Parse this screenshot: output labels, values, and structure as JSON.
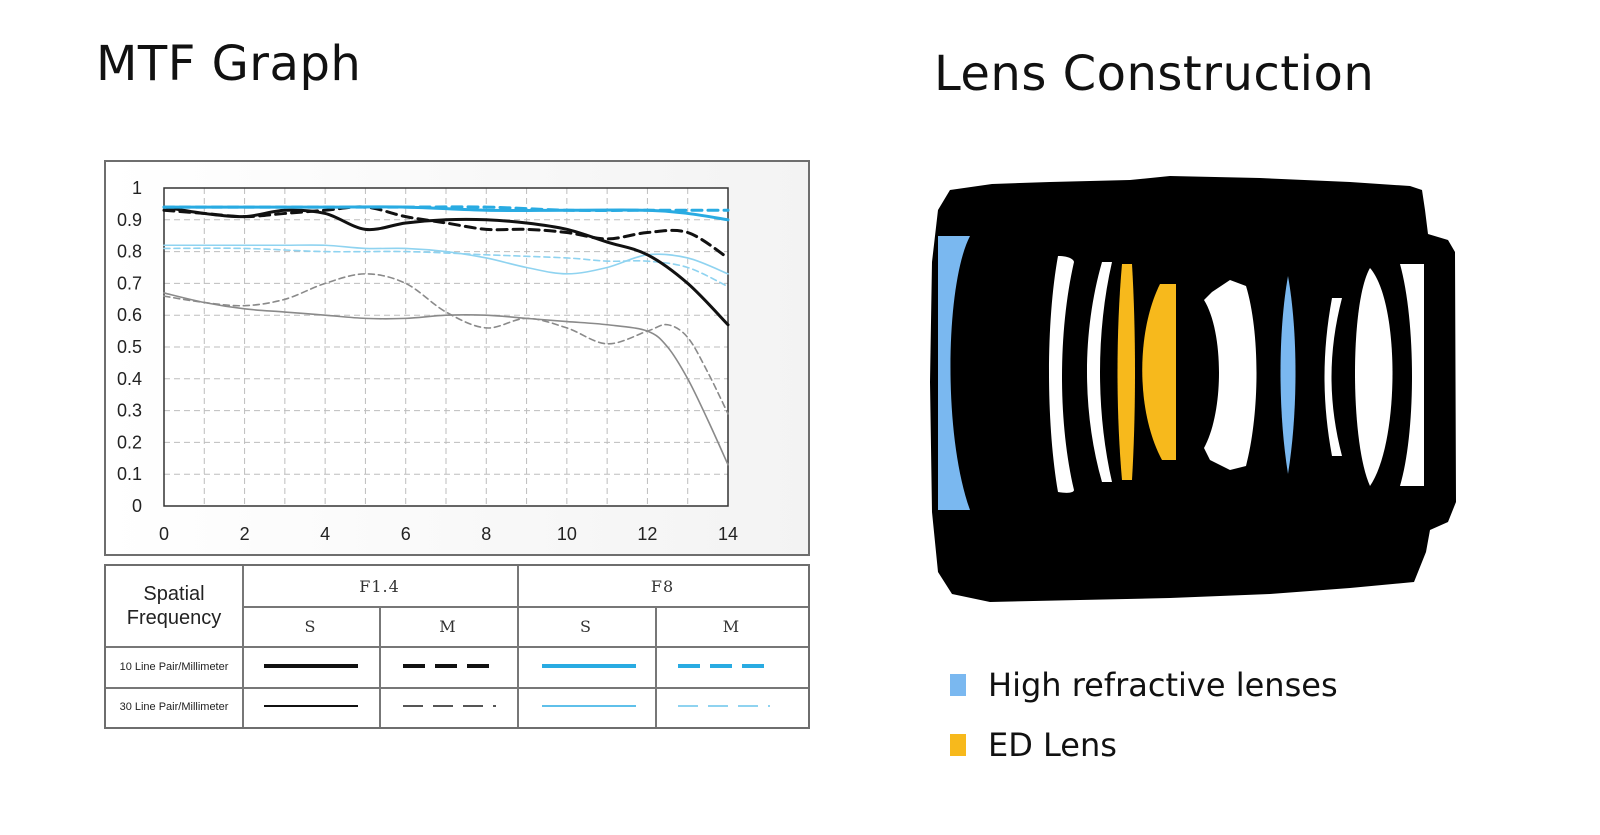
{
  "left_title": "MTF Graph",
  "right_title": "Lens Construction",
  "chart_data": {
    "type": "line",
    "title": "",
    "xlabel": "",
    "ylabel": "",
    "xlim": [
      0,
      14
    ],
    "ylim": [
      0,
      1
    ],
    "x_ticks": [
      0,
      2,
      4,
      6,
      8,
      10,
      12,
      14
    ],
    "y_ticks": [
      0,
      0.1,
      0.2,
      0.3,
      0.4,
      0.5,
      0.6,
      0.7,
      0.8,
      0.9,
      1
    ],
    "y_tick_labels": [
      "0",
      "0.1",
      "0.2",
      "0.3",
      "0.4",
      "0.5",
      "0.6",
      "0.7",
      "0.8",
      "0.9",
      "1"
    ],
    "grid": true,
    "series": [
      {
        "key": "f14-s-10",
        "color": "#111111",
        "dashed": false,
        "weight": "thick",
        "x": [
          0,
          1,
          2,
          3,
          4,
          5,
          6,
          7,
          8,
          9,
          10,
          11,
          12,
          13,
          14
        ],
        "y": [
          0.94,
          0.92,
          0.91,
          0.93,
          0.92,
          0.87,
          0.89,
          0.9,
          0.9,
          0.89,
          0.87,
          0.83,
          0.79,
          0.7,
          0.57
        ]
      },
      {
        "key": "f14-m-10",
        "color": "#111111",
        "dashed": true,
        "weight": "thick",
        "x": [
          0,
          1,
          2,
          3,
          4,
          5,
          6,
          7,
          8,
          9,
          10,
          11,
          12,
          13,
          14
        ],
        "y": [
          0.93,
          0.92,
          0.91,
          0.92,
          0.93,
          0.94,
          0.91,
          0.89,
          0.87,
          0.87,
          0.86,
          0.84,
          0.86,
          0.86,
          0.78
        ]
      },
      {
        "key": "f8-s-10",
        "color": "#29abe2",
        "dashed": false,
        "weight": "thick",
        "x": [
          0,
          2,
          4,
          6,
          8,
          10,
          12,
          13,
          14
        ],
        "y": [
          0.94,
          0.94,
          0.94,
          0.94,
          0.93,
          0.93,
          0.93,
          0.92,
          0.9
        ]
      },
      {
        "key": "f8-m-10",
        "color": "#29abe2",
        "dashed": true,
        "weight": "thick",
        "x": [
          0,
          2,
          4,
          6,
          8,
          10,
          12,
          13,
          14
        ],
        "y": [
          0.94,
          0.94,
          0.94,
          0.94,
          0.94,
          0.93,
          0.93,
          0.93,
          0.93
        ]
      },
      {
        "key": "f14-s-30",
        "color": "#8a8a8a",
        "dashed": false,
        "weight": "thin",
        "x": [
          0,
          1,
          2,
          3,
          4,
          5,
          6,
          7,
          8,
          9,
          10,
          11,
          12,
          12.5,
          13,
          13.5,
          14
        ],
        "y": [
          0.67,
          0.64,
          0.62,
          0.61,
          0.6,
          0.59,
          0.59,
          0.6,
          0.6,
          0.59,
          0.58,
          0.57,
          0.55,
          0.5,
          0.4,
          0.27,
          0.13
        ]
      },
      {
        "key": "f14-m-30",
        "color": "#8a8a8a",
        "dashed": true,
        "weight": "thin",
        "x": [
          0,
          1,
          2,
          3,
          4,
          5,
          6,
          7,
          8,
          9,
          10,
          11,
          12,
          12.5,
          13,
          13.5,
          14
        ],
        "y": [
          0.66,
          0.64,
          0.63,
          0.65,
          0.7,
          0.73,
          0.7,
          0.61,
          0.56,
          0.59,
          0.56,
          0.51,
          0.55,
          0.57,
          0.53,
          0.42,
          0.29
        ]
      },
      {
        "key": "f8-s-30",
        "color": "#8fd3f0",
        "dashed": false,
        "weight": "thin",
        "x": [
          0,
          1,
          2,
          3,
          4,
          5,
          6,
          7,
          8,
          9,
          10,
          11,
          12,
          13,
          14
        ],
        "y": [
          0.82,
          0.82,
          0.82,
          0.82,
          0.82,
          0.81,
          0.81,
          0.8,
          0.78,
          0.75,
          0.73,
          0.75,
          0.79,
          0.78,
          0.73
        ]
      },
      {
        "key": "f8-m-30",
        "color": "#8fd3f0",
        "dashed": true,
        "weight": "thin",
        "x": [
          0,
          2,
          4,
          6,
          8,
          10,
          11,
          12,
          13,
          14
        ],
        "y": [
          0.81,
          0.81,
          0.8,
          0.8,
          0.79,
          0.78,
          0.77,
          0.77,
          0.75,
          0.69
        ]
      }
    ]
  },
  "legend_table": {
    "header_label_line1": "Spatial",
    "header_label_line2": "Frequency",
    "groups": [
      {
        "label": "F1.4",
        "columns": [
          "S",
          "M"
        ]
      },
      {
        "label": "F8",
        "columns": [
          "S",
          "M"
        ]
      }
    ],
    "rows": [
      {
        "label": "10 Line Pair/Millimeter",
        "samples": [
          {
            "color": "#111111",
            "dashed": false,
            "weight": "thick"
          },
          {
            "color": "#111111",
            "dashed": true,
            "weight": "thick"
          },
          {
            "color": "#29abe2",
            "dashed": false,
            "weight": "thick"
          },
          {
            "color": "#29abe2",
            "dashed": true,
            "weight": "thick"
          }
        ]
      },
      {
        "label": "30 Line Pair/Millimeter",
        "samples": [
          {
            "color": "#111111",
            "dashed": false,
            "weight": "thin"
          },
          {
            "color": "#555555",
            "dashed": true,
            "weight": "thin"
          },
          {
            "color": "#5fc0ea",
            "dashed": false,
            "weight": "thin"
          },
          {
            "color": "#8fd3f0",
            "dashed": true,
            "weight": "thin"
          }
        ]
      }
    ]
  },
  "lens_legend": [
    {
      "label": "High refractive lenses",
      "color": "#7ab8f0"
    },
    {
      "label": "ED Lens",
      "color": "#f7b91c"
    }
  ]
}
